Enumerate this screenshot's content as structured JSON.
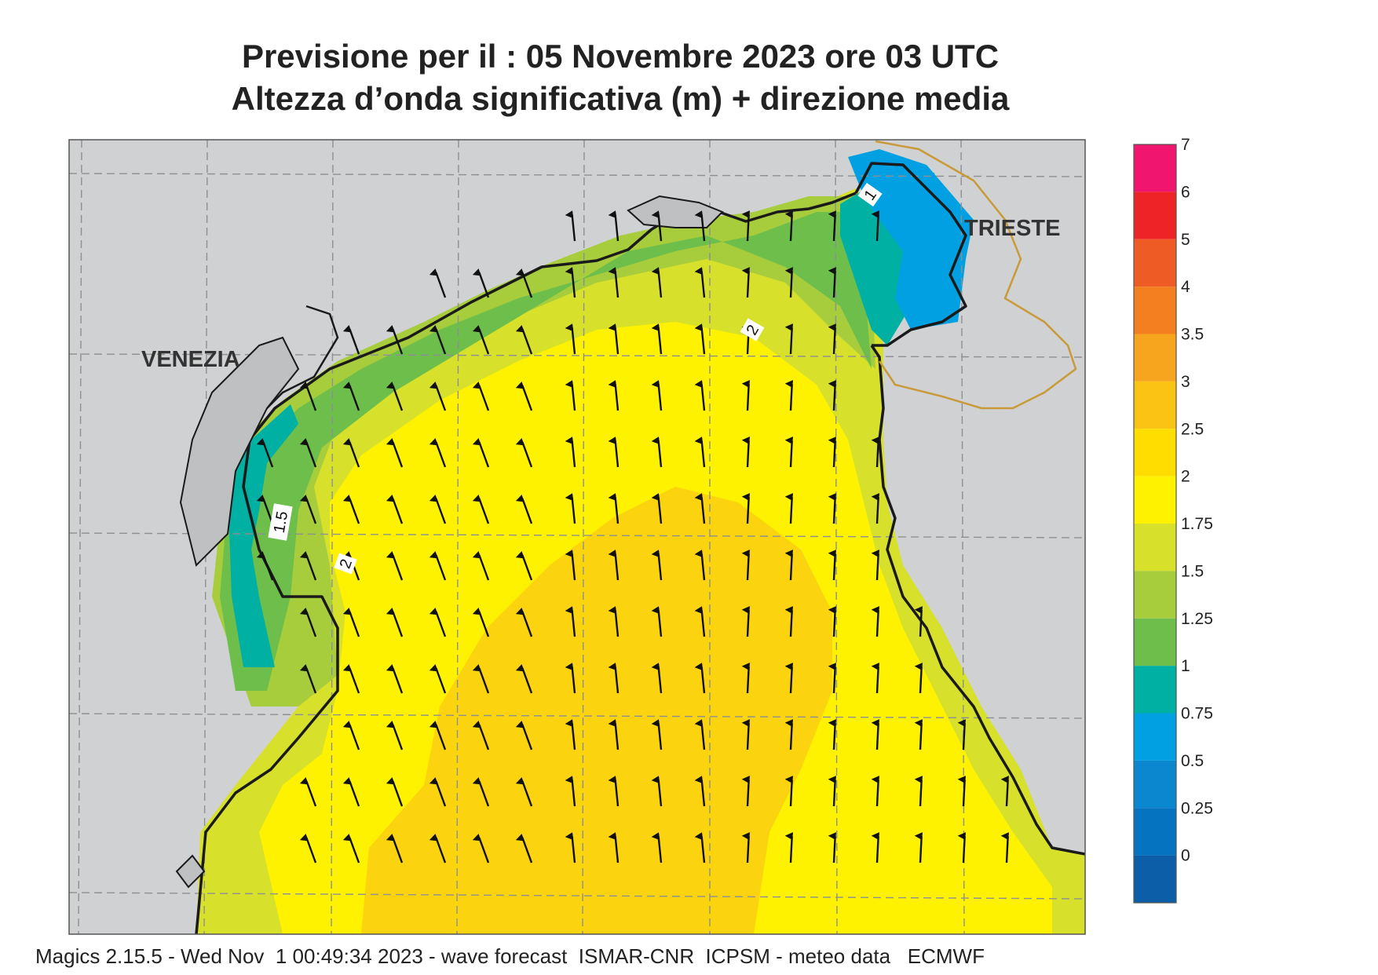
{
  "title": {
    "line1": "Previsione per il  :  05 Novembre  2023   ore 03 UTC",
    "line2": "Altezza d’onda significativa (m) + direzione media"
  },
  "cities": [
    {
      "name": "VENEZIA"
    },
    {
      "name": "TRIESTE"
    }
  ],
  "contour_labels": [
    "1",
    "2",
    "1.5",
    "2"
  ],
  "colorbar": {
    "levels": [
      "7",
      "6",
      "5",
      "4",
      "3.5",
      "3",
      "2.5",
      "2",
      "1.75",
      "1.5",
      "1.25",
      "1",
      "0.75",
      "0.5",
      "0.25",
      "0"
    ],
    "colors": [
      "#f0156e",
      "#ee2327",
      "#ef5b25",
      "#f47f20",
      "#f7a51e",
      "#fbc414",
      "#ffdd00",
      "#fff200",
      "#d7e12b",
      "#a8cd3c",
      "#6dbe4b",
      "#00b0a3",
      "#00a0e3",
      "#0b87d0",
      "#0573bf",
      "#0d5ea8"
    ]
  },
  "wave_direction": "north",
  "footer": "Magics 2.15.5 - Wed Nov  1 00:49:34 2023 - wave forecast  ISMAR-CNR  ICPSM - meteo data   ECMWF"
}
